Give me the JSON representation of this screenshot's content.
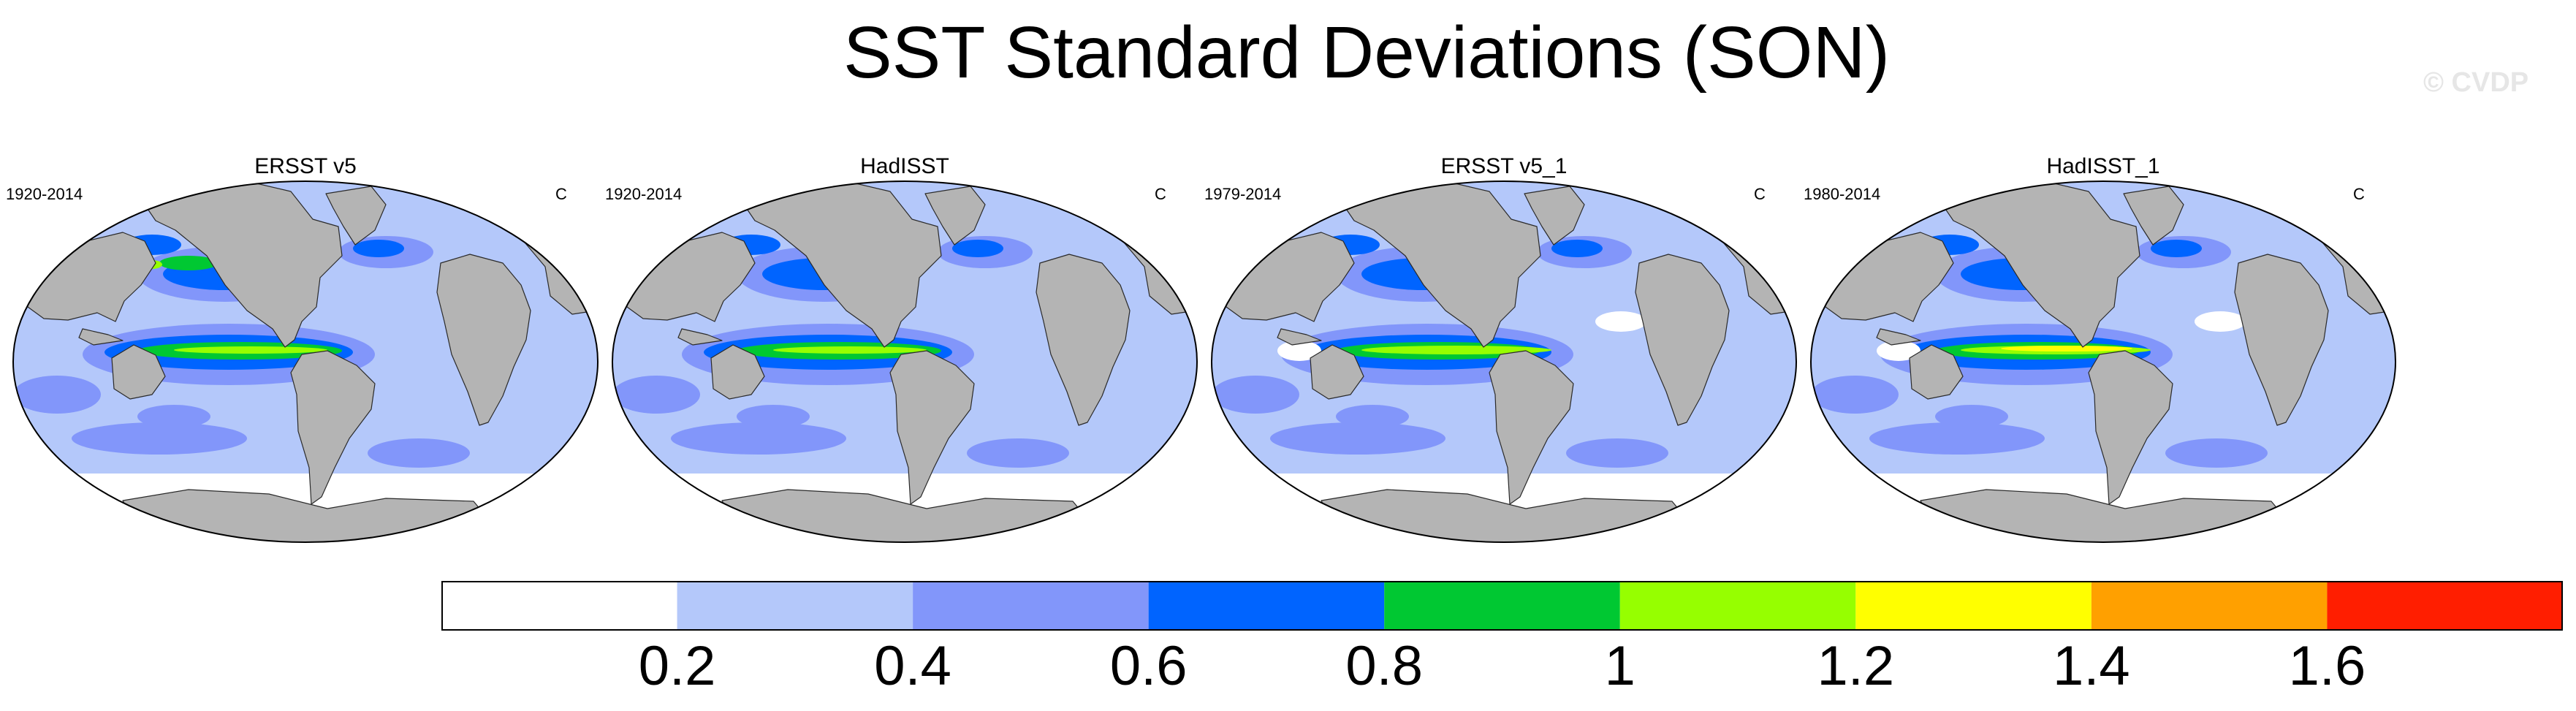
{
  "figure": {
    "title": "SST Standard Deviations (SON)",
    "copyright": "© CVDP"
  },
  "panels": [
    {
      "title": "ERSST v5",
      "years": "1920-2014",
      "units": "C",
      "variant": 0
    },
    {
      "title": "HadISST",
      "years": "1920-2014",
      "units": "C",
      "variant": 1
    },
    {
      "title": "ERSST v5_1",
      "years": "1979-2014",
      "units": "C",
      "variant": 2
    },
    {
      "title": "HadISST_1",
      "years": "1980-2014",
      "units": "C",
      "variant": 3
    }
  ],
  "colorbar": {
    "colors": [
      "#ffffff",
      "#b4c8fa",
      "#8296fa",
      "#0064ff",
      "#00c832",
      "#96ff00",
      "#ffff00",
      "#ffa000",
      "#ff1e00"
    ],
    "tick_labels": [
      "0.2",
      "0.4",
      "0.6",
      "0.8",
      "1",
      "1.2",
      "1.4",
      "1.6"
    ]
  },
  "colors": {
    "land": "#b4b4b4",
    "land_outline": "#2a2a2a"
  }
}
